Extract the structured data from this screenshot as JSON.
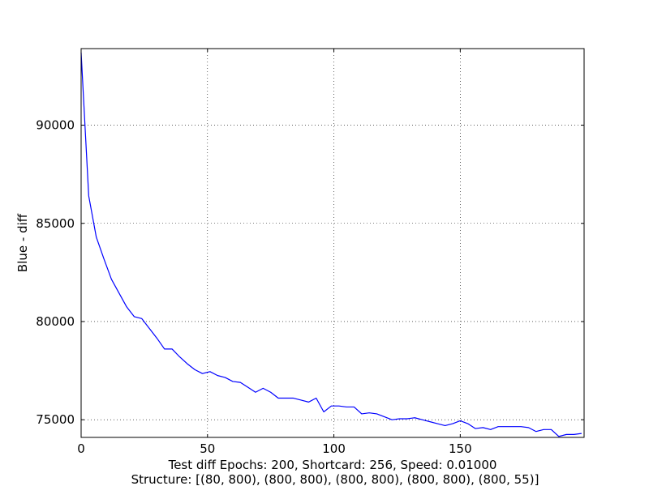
{
  "chart_data": {
    "type": "line",
    "title": "",
    "xlabel_line1": "Test diff Epochs: 200, Shortcard: 256, Speed: 0.01000",
    "xlabel_line2": "Structure: [(80, 800), (800, 800), (800, 800), (800, 800), (800, 55)]",
    "ylabel": "Blue - diff",
    "xlim": [
      0,
      199
    ],
    "ylim": [
      74100,
      93900
    ],
    "grid": true,
    "x_ticks": [
      0,
      50,
      100,
      150
    ],
    "x_tick_labels": [
      "0",
      "50",
      "100",
      "150"
    ],
    "y_ticks": [
      75000,
      80000,
      85000,
      90000
    ],
    "y_tick_labels": [
      "75000",
      "80000",
      "85000",
      "90000"
    ],
    "series": [
      {
        "color": "#0000ff",
        "x": [
          0,
          3,
          6,
          9,
          12,
          15,
          18,
          21,
          24,
          27,
          30,
          33,
          36,
          39,
          42,
          45,
          48,
          51,
          54,
          57,
          60,
          63,
          66,
          69,
          72,
          75,
          78,
          81,
          84,
          87,
          90,
          93,
          96,
          99,
          102,
          105,
          108,
          111,
          114,
          117,
          120,
          123,
          126,
          129,
          132,
          135,
          138,
          141,
          144,
          147,
          150,
          153,
          156,
          159,
          162,
          165,
          168,
          171,
          174,
          177,
          180,
          183,
          186,
          189,
          192,
          195,
          198
        ],
        "y": [
          93700,
          86400,
          84300,
          83200,
          82150,
          81450,
          80750,
          80250,
          80150,
          79650,
          79150,
          78600,
          78600,
          78200,
          77850,
          77550,
          77350,
          77450,
          77250,
          77150,
          76950,
          76900,
          76650,
          76400,
          76600,
          76400,
          76100,
          76100,
          76100,
          76000,
          75900,
          76100,
          75400,
          75700,
          75700,
          75650,
          75650,
          75300,
          75350,
          75300,
          75150,
          75000,
          75050,
          75050,
          75100,
          75000,
          74900,
          74800,
          74700,
          74800,
          74950,
          74800,
          74550,
          74600,
          74500,
          74650,
          74650,
          74650,
          74650,
          74600,
          74400,
          74500,
          74500,
          74150,
          74250,
          74250,
          74300
        ]
      }
    ]
  }
}
